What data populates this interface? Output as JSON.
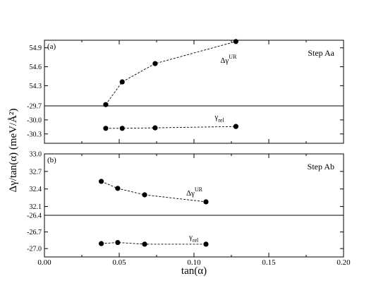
{
  "chart_data": {
    "type": "scatter",
    "x_axis": {
      "label": "tan(α)",
      "range": [
        0.0,
        0.2
      ],
      "ticks": [
        "0.00",
        "0.05",
        "0.10",
        "0.15",
        "0.20"
      ],
      "tick_values": [
        0.0,
        0.05,
        0.1,
        0.15,
        0.2
      ]
    },
    "y_axis_label": "Δγ/tan(α) (meV/Å²)",
    "panels": [
      {
        "tag": "(a)",
        "title": "Step Aa",
        "subplots": [
          {
            "series_label_main": "Δγ",
            "series_label_sup": "UR",
            "ylim": [
              53.98,
              55.02
            ],
            "ticks": [
              "54.3",
              "54.6",
              "54.9"
            ],
            "tick_values": [
              54.3,
              54.6,
              54.9
            ],
            "x": [
              0.041,
              0.052,
              0.074,
              0.128
            ],
            "y": [
              54.0,
              54.36,
              54.65,
              55.0
            ]
          },
          {
            "series_label_main": "γ",
            "series_label_sub": "rel",
            "ylim": [
              -30.5,
              -29.7
            ],
            "ticks": [
              "-29.7",
              "-30.0",
              "-30.3"
            ],
            "tick_values": [
              -29.7,
              -30.0,
              -30.3
            ],
            "x": [
              0.041,
              0.052,
              0.074,
              0.128
            ],
            "y": [
              -30.18,
              -30.18,
              -30.17,
              -30.14
            ]
          }
        ]
      },
      {
        "tag": "(b)",
        "title": "Step Ab",
        "subplots": [
          {
            "series_label_main": "Δγ",
            "series_label_sup": "UR",
            "ylim": [
              31.95,
              33.0
            ],
            "ticks": [
              "33.0",
              "32.7",
              "32.4",
              "32.1"
            ],
            "tick_values": [
              33.0,
              32.7,
              32.4,
              32.1
            ],
            "x": [
              0.038,
              0.049,
              0.067,
              0.108
            ],
            "y": [
              32.53,
              32.41,
              32.3,
              32.18
            ]
          },
          {
            "series_label_main": "γ",
            "series_label_sub": "rel",
            "ylim": [
              -27.15,
              -26.4
            ],
            "ticks": [
              "-26.4",
              "-26.7",
              "-27.0"
            ],
            "tick_values": [
              -26.4,
              -26.7,
              -27.0
            ],
            "x": [
              0.038,
              0.049,
              0.067,
              0.108
            ],
            "y": [
              -26.91,
              -26.89,
              -26.92,
              -26.92
            ]
          }
        ]
      }
    ],
    "grid": false,
    "legend": "none"
  }
}
